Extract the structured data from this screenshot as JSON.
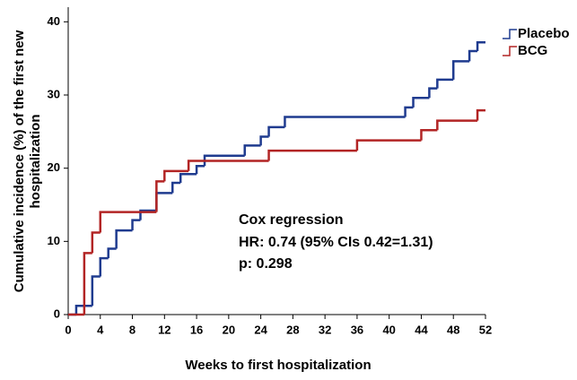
{
  "chart_data": {
    "type": "step",
    "ylabel": [
      "Cumulative incidence (%) of the first new",
      "hospitalization"
    ],
    "xlabel": "Weeks to first hospitalization",
    "annotation": [
      "Cox regression",
      "HR: 0.74 (95% CIs 0.42=1.31)",
      "p: 0.298"
    ],
    "xlim": [
      0,
      52
    ],
    "xticks": [
      0,
      4,
      8,
      12,
      16,
      20,
      24,
      28,
      32,
      36,
      40,
      44,
      48,
      52
    ],
    "ylim": [
      0,
      42
    ],
    "yticks": [
      0,
      10,
      20,
      30,
      40
    ],
    "series": [
      {
        "name": "Placebo",
        "color": "#1f3b8f",
        "x": [
          0,
          1,
          3,
          4,
          5,
          6,
          8,
          9,
          11,
          13,
          14,
          16,
          17,
          22,
          24,
          25,
          27,
          42,
          43,
          45,
          46,
          48,
          50,
          51,
          52
        ],
        "values": [
          0,
          1.2,
          5.2,
          7.7,
          9.0,
          11.5,
          12.9,
          14.2,
          16.6,
          18.0,
          19.2,
          20.3,
          21.7,
          23.1,
          24.3,
          25.6,
          27.0,
          28.3,
          29.6,
          30.9,
          32.1,
          34.6,
          36.0,
          37.2,
          37.2
        ]
      },
      {
        "name": "BCG",
        "color": "#b22424",
        "x": [
          0,
          2,
          3,
          4,
          11,
          12,
          15,
          25,
          36,
          44,
          46,
          51,
          52
        ],
        "values": [
          0,
          8.4,
          11.2,
          14.0,
          18.2,
          19.6,
          21.0,
          22.4,
          23.8,
          25.2,
          26.5,
          27.9,
          27.9
        ]
      }
    ]
  }
}
